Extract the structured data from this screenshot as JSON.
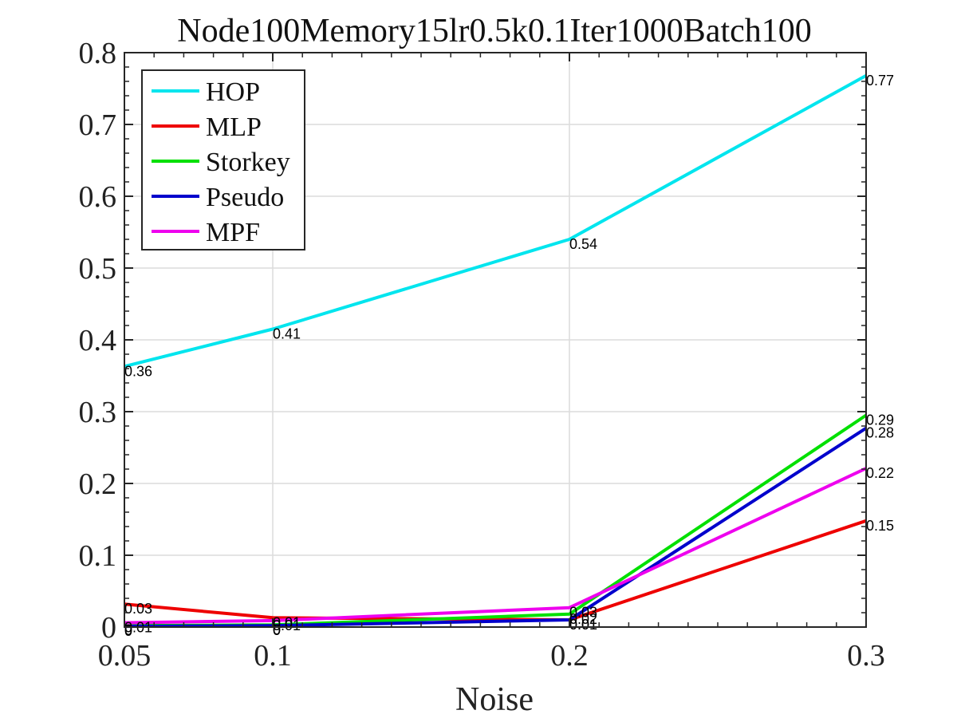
{
  "chart_data": {
    "type": "line",
    "title": "Node100Memory15lr0.5k0.1Iter1000Batch100",
    "xlabel": "Noise",
    "ylabel": "",
    "x": [
      0.05,
      0.1,
      0.2,
      0.3
    ],
    "xticks": [
      "0.05",
      "0.1",
      "0.2",
      "0.3"
    ],
    "yticks": [
      "0",
      "0.1",
      "0.2",
      "0.3",
      "0.4",
      "0.5",
      "0.6",
      "0.7",
      "0.8"
    ],
    "xlim": [
      0.05,
      0.3
    ],
    "ylim": [
      0,
      0.8
    ],
    "grid": true,
    "legend_position": "top-left",
    "series": [
      {
        "name": "HOP",
        "color": "#00e5ee",
        "values": [
          0.363,
          0.415,
          0.54,
          0.768
        ],
        "labels": [
          "0.36",
          "0.41",
          "0.54",
          "0.77"
        ]
      },
      {
        "name": "MLP",
        "color": "#ee0000",
        "values": [
          0.032,
          0.013,
          0.01,
          0.148
        ],
        "labels": [
          "0.03",
          "0.01",
          "0.01",
          "0.15"
        ]
      },
      {
        "name": "Storkey",
        "color": "#00e000",
        "values": [
          0.002,
          0.003,
          0.018,
          0.295
        ],
        "labels": [
          "0",
          "0",
          "0.02",
          "0.29"
        ]
      },
      {
        "name": "Pseudo",
        "color": "#0000cc",
        "values": [
          0.001,
          0.002,
          0.01,
          0.277
        ],
        "labels": [
          "0",
          "0",
          "0.01",
          "0.28"
        ]
      },
      {
        "name": "MPF",
        "color": "#ee00ee",
        "values": [
          0.006,
          0.009,
          0.027,
          0.221
        ],
        "labels": [
          "0.01",
          "0.01",
          "0.03",
          "0.22"
        ]
      }
    ]
  }
}
